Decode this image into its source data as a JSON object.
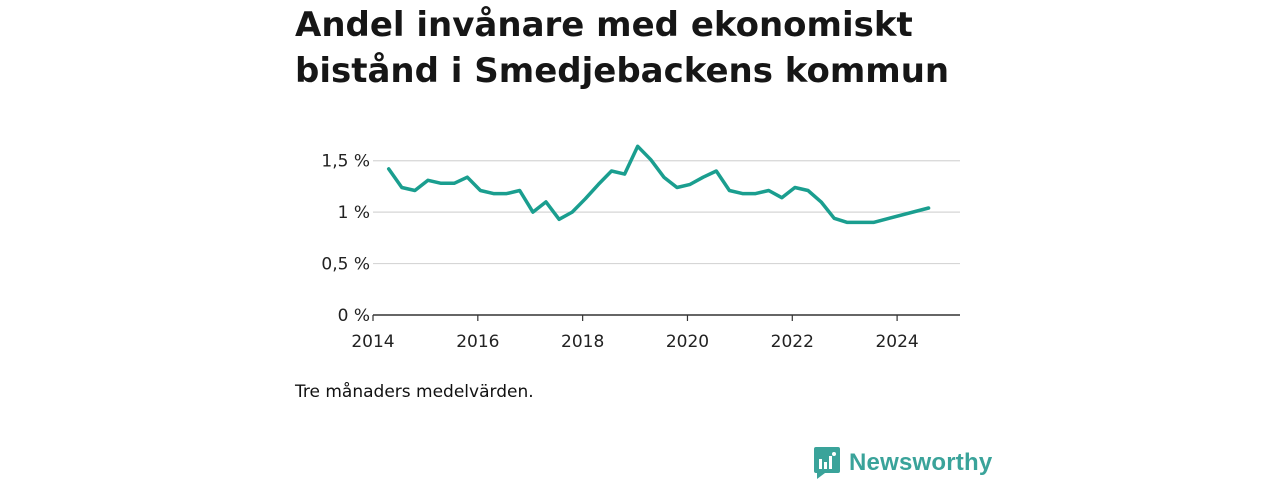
{
  "title_lines": [
    "Andel invånare med ekonomiskt",
    "bistånd i Smedjebackens kommun"
  ],
  "caption": "Tre månaders medelvärden.",
  "brand": {
    "name": "Newsworthy",
    "logo_icon": "newsworthy-logo-icon",
    "color": "#3aa39a"
  },
  "chart_data": {
    "type": "line",
    "title": "Andel invånare med ekonomiskt bistånd i Smedjebackens kommun",
    "xlabel": "",
    "ylabel": "",
    "x_ticks": [
      "2014",
      "2016",
      "2018",
      "2020",
      "2022",
      "2024"
    ],
    "y_ticks": [
      "0 %",
      "0,5 %",
      "1 %",
      "1,5 %"
    ],
    "ylim": [
      0,
      1.75
    ],
    "xlim": [
      2014,
      2025.2
    ],
    "grid": "horizontal",
    "line_color": "#1a9e8f",
    "series": [
      {
        "x": [
          2014.3,
          2014.55,
          2014.8,
          2015.05,
          2015.3,
          2015.55,
          2015.8,
          2016.05,
          2016.3,
          2016.55,
          2016.8,
          2017.05,
          2017.3,
          2017.55,
          2017.8,
          2018.05,
          2018.3,
          2018.55,
          2018.8,
          2019.05,
          2019.3,
          2019.55,
          2019.8,
          2020.05,
          2020.3,
          2020.55,
          2020.8,
          2021.05,
          2021.3,
          2021.55,
          2021.8,
          2022.05,
          2022.3,
          2022.55,
          2022.8,
          2023.05,
          2023.3,
          2023.55,
          2024.6
        ],
        "values": [
          1.42,
          1.24,
          1.21,
          1.31,
          1.28,
          1.28,
          1.34,
          1.21,
          1.18,
          1.18,
          1.21,
          1.0,
          1.1,
          0.93,
          1.0,
          1.13,
          1.27,
          1.4,
          1.37,
          1.64,
          1.51,
          1.34,
          1.24,
          1.27,
          1.34,
          1.4,
          1.21,
          1.18,
          1.18,
          1.21,
          1.14,
          1.24,
          1.21,
          1.1,
          0.94,
          0.9,
          0.9,
          0.9,
          1.04
        ]
      }
    ]
  }
}
